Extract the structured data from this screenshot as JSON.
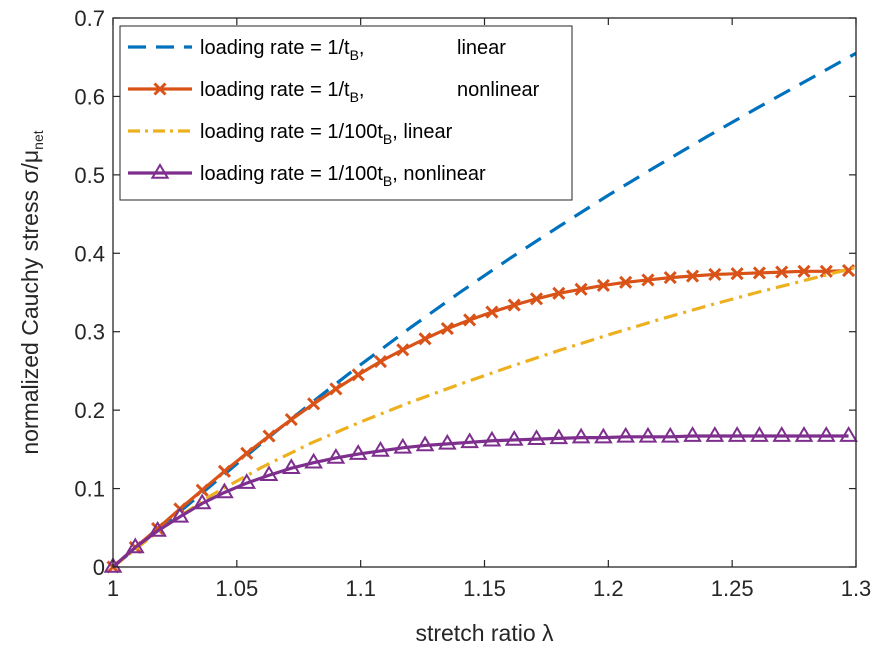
{
  "chart_data": {
    "type": "line",
    "xlabel": "stretch ratio λ",
    "ylabel": "normalized Cauchy stress σ/μ",
    "ylabel_sub": "net",
    "xlim": [
      1,
      1.3
    ],
    "ylim": [
      0,
      0.7
    ],
    "xticks": [
      "1",
      "1.05",
      "1.1",
      "1.15",
      "1.2",
      "1.25",
      "1.3"
    ],
    "yticks": [
      "0",
      "0.1",
      "0.2",
      "0.3",
      "0.4",
      "0.5",
      "0.6",
      "0.7"
    ],
    "grid": false,
    "legend_position": "top-left",
    "series": [
      {
        "name": "loading rate = 1/t",
        "name_sub": "B",
        "name_tail": ",",
        "name_right": "linear",
        "style": "dashed",
        "marker": "none",
        "color": "#0072BD",
        "x": [
          1,
          1.02,
          1.04,
          1.06,
          1.08,
          1.1,
          1.12,
          1.14,
          1.16,
          1.18,
          1.2,
          1.22,
          1.24,
          1.26,
          1.28,
          1.3
        ],
        "y": [
          0,
          0.052,
          0.105,
          0.158,
          0.209,
          0.258,
          0.305,
          0.35,
          0.393,
          0.434,
          0.474,
          0.512,
          0.549,
          0.585,
          0.62,
          0.655
        ]
      },
      {
        "name": "loading rate = 1/t",
        "name_sub": "B",
        "name_tail": ",",
        "name_right": "nonlinear",
        "style": "solid",
        "marker": "x",
        "color": "#D95319",
        "x": [
          1,
          1.009,
          1.018,
          1.027,
          1.036,
          1.045,
          1.054,
          1.063,
          1.072,
          1.081,
          1.09,
          1.099,
          1.108,
          1.117,
          1.126,
          1.135,
          1.144,
          1.153,
          1.162,
          1.171,
          1.18,
          1.189,
          1.198,
          1.207,
          1.216,
          1.225,
          1.234,
          1.243,
          1.252,
          1.261,
          1.27,
          1.279,
          1.288,
          1.297
        ],
        "y": [
          0,
          0.025,
          0.049,
          0.074,
          0.098,
          0.122,
          0.145,
          0.167,
          0.188,
          0.208,
          0.227,
          0.245,
          0.262,
          0.277,
          0.291,
          0.304,
          0.315,
          0.325,
          0.334,
          0.342,
          0.349,
          0.354,
          0.359,
          0.363,
          0.366,
          0.369,
          0.371,
          0.373,
          0.374,
          0.375,
          0.376,
          0.377,
          0.377,
          0.378
        ]
      },
      {
        "name": "loading rate = 1/100t",
        "name_sub": "B",
        "name_tail": ", linear",
        "name_right": "",
        "style": "dashdot",
        "marker": "none",
        "color": "#EDB120",
        "x": [
          1,
          1.02,
          1.04,
          1.06,
          1.08,
          1.1,
          1.12,
          1.14,
          1.16,
          1.18,
          1.2,
          1.22,
          1.24,
          1.26,
          1.28,
          1.3
        ],
        "y": [
          0,
          0.05,
          0.092,
          0.127,
          0.158,
          0.185,
          0.21,
          0.233,
          0.255,
          0.276,
          0.296,
          0.315,
          0.333,
          0.35,
          0.366,
          0.382
        ]
      },
      {
        "name": "loading rate = 1/100t",
        "name_sub": "B",
        "name_tail": ", nonlinear",
        "name_right": "",
        "style": "solid",
        "marker": "triangle",
        "color": "#7E2F8E",
        "x": [
          1,
          1.009,
          1.018,
          1.027,
          1.036,
          1.045,
          1.054,
          1.063,
          1.072,
          1.081,
          1.09,
          1.099,
          1.108,
          1.117,
          1.126,
          1.135,
          1.144,
          1.153,
          1.162,
          1.171,
          1.18,
          1.189,
          1.198,
          1.207,
          1.216,
          1.225,
          1.234,
          1.243,
          1.252,
          1.261,
          1.27,
          1.279,
          1.288,
          1.297
        ],
        "y": [
          0,
          0.025,
          0.046,
          0.064,
          0.081,
          0.095,
          0.107,
          0.117,
          0.126,
          0.133,
          0.139,
          0.144,
          0.148,
          0.152,
          0.155,
          0.157,
          0.159,
          0.161,
          0.162,
          0.163,
          0.164,
          0.165,
          0.165,
          0.166,
          0.166,
          0.166,
          0.167,
          0.167,
          0.167,
          0.167,
          0.167,
          0.167,
          0.167,
          0.167
        ]
      }
    ]
  }
}
